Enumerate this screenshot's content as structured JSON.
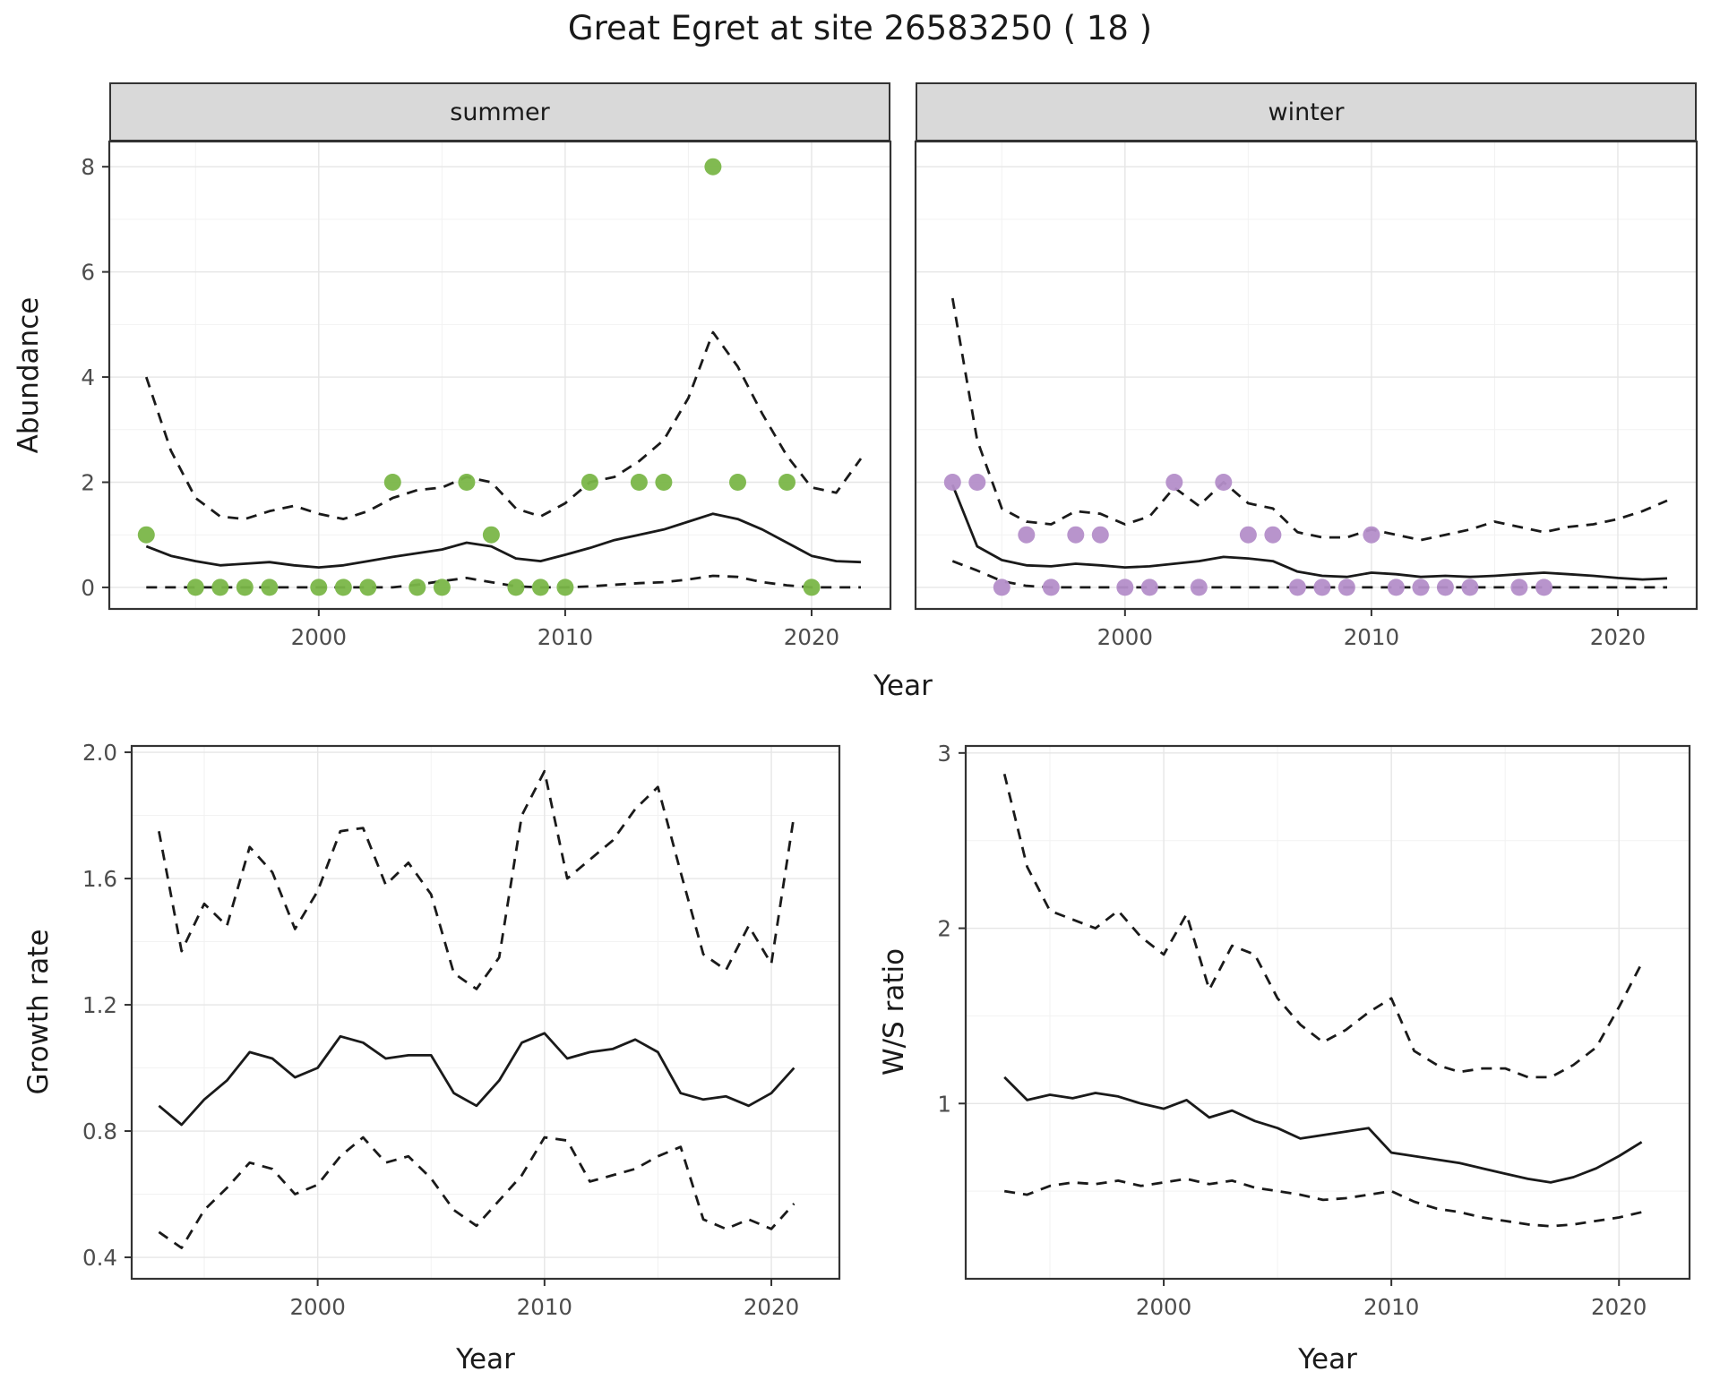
{
  "title": "Great Egret at site 26583250 ( 18 )",
  "labels": {
    "year": "Year",
    "abundance": "Abundance",
    "growth_rate": "Growth rate",
    "ws_ratio": "W/S ratio"
  },
  "colors": {
    "summer_points": "#7ab648",
    "winter_points": "#b48ec9",
    "line": "#1a1a1a",
    "strip_bg": "#d9d9d9",
    "panel_border": "#333333",
    "grid_major": "#e6e6e6",
    "grid_minor": "#f2f2f2",
    "tick_text": "#4d4d4d"
  },
  "chart_data": [
    {
      "id": "abundance-summer",
      "type": "line",
      "facet_label": "summer",
      "xlabel": "Year",
      "ylabel": "Abundance",
      "xlim": [
        1991.5,
        2023.2
      ],
      "ylim": [
        -0.41,
        8.48
      ],
      "xticks": [
        2000,
        2010,
        2020
      ],
      "xtick_labels": [
        "2000",
        "2010",
        "2020"
      ],
      "yticks": [
        0,
        2,
        4,
        6,
        8
      ],
      "ytick_labels": [
        "0",
        "2",
        "4",
        "6",
        "8"
      ],
      "grid": true,
      "x": [
        1993,
        1994,
        1995,
        1996,
        1997,
        1998,
        1999,
        2000,
        2001,
        2002,
        2003,
        2004,
        2005,
        2006,
        2007,
        2008,
        2009,
        2010,
        2011,
        2012,
        2013,
        2014,
        2015,
        2016,
        2017,
        2018,
        2019,
        2020,
        2021,
        2022
      ],
      "series": [
        {
          "name": "median",
          "style": "solid",
          "values": [
            0.78,
            0.6,
            0.5,
            0.42,
            0.45,
            0.48,
            0.42,
            0.38,
            0.42,
            0.5,
            0.58,
            0.65,
            0.72,
            0.85,
            0.78,
            0.55,
            0.5,
            0.62,
            0.75,
            0.9,
            1.0,
            1.1,
            1.25,
            1.4,
            1.3,
            1.1,
            0.85,
            0.6,
            0.5,
            0.48
          ]
        },
        {
          "name": "upper-ci",
          "style": "dashed",
          "values": [
            4.0,
            2.6,
            1.7,
            1.35,
            1.3,
            1.45,
            1.55,
            1.4,
            1.3,
            1.45,
            1.7,
            1.85,
            1.9,
            2.1,
            2.0,
            1.5,
            1.35,
            1.6,
            2.0,
            2.1,
            2.4,
            2.8,
            3.6,
            4.85,
            4.2,
            3.3,
            2.5,
            1.9,
            1.8,
            2.45
          ]
        },
        {
          "name": "lower-ci",
          "style": "dashed",
          "values": [
            0,
            0,
            0,
            0,
            0,
            0,
            0,
            0,
            0,
            0,
            0,
            0.05,
            0.12,
            0.18,
            0.1,
            0.02,
            0,
            0,
            0.02,
            0.05,
            0.08,
            0.1,
            0.15,
            0.22,
            0.2,
            0.1,
            0.04,
            0,
            0,
            0
          ]
        }
      ],
      "points": {
        "name": "observed-counts-summer",
        "color_key": "summer_points",
        "x": [
          1993,
          1995,
          1996,
          1997,
          1998,
          2000,
          2001,
          2002,
          2003,
          2004,
          2005,
          2006,
          2007,
          2008,
          2009,
          2010,
          2011,
          2013,
          2014,
          2016,
          2017,
          2019,
          2020
        ],
        "y": [
          1,
          0,
          0,
          0,
          0,
          0,
          0,
          0,
          2,
          0,
          0,
          2,
          1,
          0,
          0,
          0,
          2,
          2,
          2,
          8,
          2,
          2,
          0
        ]
      }
    },
    {
      "id": "abundance-winter",
      "type": "line",
      "facet_label": "winter",
      "xlabel": "Year",
      "ylabel": "Abundance",
      "xlim": [
        1991.5,
        2023.2
      ],
      "ylim": [
        -0.41,
        8.48
      ],
      "xticks": [
        2000,
        2010,
        2020
      ],
      "xtick_labels": [
        "2000",
        "2010",
        "2020"
      ],
      "yticks": [
        0,
        2,
        4,
        6,
        8
      ],
      "ytick_labels": [
        "0",
        "2",
        "4",
        "6",
        "8"
      ],
      "grid": true,
      "x": [
        1993,
        1994,
        1995,
        1996,
        1997,
        1998,
        1999,
        2000,
        2001,
        2002,
        2003,
        2004,
        2005,
        2006,
        2007,
        2008,
        2009,
        2010,
        2011,
        2012,
        2013,
        2014,
        2015,
        2016,
        2017,
        2018,
        2019,
        2020,
        2021,
        2022
      ],
      "series": [
        {
          "name": "median",
          "style": "solid",
          "values": [
            1.95,
            0.78,
            0.52,
            0.42,
            0.4,
            0.45,
            0.42,
            0.38,
            0.4,
            0.45,
            0.5,
            0.58,
            0.55,
            0.5,
            0.3,
            0.22,
            0.2,
            0.28,
            0.25,
            0.2,
            0.22,
            0.2,
            0.22,
            0.25,
            0.28,
            0.25,
            0.22,
            0.18,
            0.15,
            0.17
          ]
        },
        {
          "name": "upper-ci",
          "style": "dashed",
          "values": [
            5.5,
            2.8,
            1.5,
            1.25,
            1.2,
            1.45,
            1.4,
            1.2,
            1.35,
            1.9,
            1.55,
            2.0,
            1.6,
            1.5,
            1.05,
            0.95,
            0.95,
            1.1,
            1.0,
            0.9,
            1.0,
            1.1,
            1.25,
            1.15,
            1.05,
            1.15,
            1.2,
            1.3,
            1.45,
            1.65
          ]
        },
        {
          "name": "lower-ci",
          "style": "dashed",
          "values": [
            0.5,
            0.32,
            0.12,
            0.03,
            0,
            0,
            0,
            0,
            0,
            0,
            0,
            0,
            0,
            0,
            0,
            0,
            0,
            0,
            0,
            0,
            0,
            0,
            0,
            0,
            0,
            0,
            0,
            0,
            0,
            0
          ]
        }
      ],
      "points": {
        "name": "observed-counts-winter",
        "color_key": "winter_points",
        "x": [
          1993,
          1994,
          1995,
          1996,
          1997,
          1998,
          1999,
          2000,
          2001,
          2002,
          2003,
          2004,
          2005,
          2006,
          2007,
          2008,
          2009,
          2010,
          2011,
          2012,
          2013,
          2014,
          2016,
          2017
        ],
        "y": [
          2,
          2,
          0,
          1,
          0,
          1,
          1,
          0,
          0,
          2,
          0,
          2,
          1,
          1,
          0,
          0,
          0,
          1,
          0,
          0,
          0,
          0,
          0,
          0
        ]
      }
    },
    {
      "id": "growth-rate",
      "type": "line",
      "facet_label": "",
      "xlabel": "Year",
      "ylabel": "Growth rate",
      "xlim": [
        1991.8,
        2023.0
      ],
      "ylim": [
        0.332,
        2.02
      ],
      "xticks": [
        2000,
        2010,
        2020
      ],
      "xtick_labels": [
        "2000",
        "2010",
        "2020"
      ],
      "yticks": [
        0.4,
        0.8,
        1.2,
        1.6,
        2.0
      ],
      "ytick_labels": [
        "0.4",
        "0.8",
        "1.2",
        "1.6",
        "2.0"
      ],
      "grid": true,
      "x": [
        1993,
        1994,
        1995,
        1996,
        1997,
        1998,
        1999,
        2000,
        2001,
        2002,
        2003,
        2004,
        2005,
        2006,
        2007,
        2008,
        2009,
        2010,
        2011,
        2012,
        2013,
        2014,
        2015,
        2016,
        2017,
        2018,
        2019,
        2020,
        2021
      ],
      "series": [
        {
          "name": "median",
          "style": "solid",
          "values": [
            0.88,
            0.82,
            0.9,
            0.96,
            1.05,
            1.03,
            0.97,
            1.0,
            1.1,
            1.08,
            1.03,
            1.04,
            1.04,
            0.92,
            0.88,
            0.96,
            1.08,
            1.11,
            1.03,
            1.05,
            1.06,
            1.09,
            1.05,
            0.92,
            0.9,
            0.91,
            0.88,
            0.92,
            1.0
          ]
        },
        {
          "name": "upper-ci",
          "style": "dashed",
          "values": [
            1.75,
            1.37,
            1.52,
            1.45,
            1.7,
            1.62,
            1.44,
            1.56,
            1.75,
            1.76,
            1.58,
            1.65,
            1.55,
            1.3,
            1.25,
            1.35,
            1.8,
            1.94,
            1.6,
            1.66,
            1.72,
            1.82,
            1.89,
            1.62,
            1.36,
            1.31,
            1.45,
            1.33,
            1.8
          ]
        },
        {
          "name": "lower-ci",
          "style": "dashed",
          "values": [
            0.48,
            0.43,
            0.55,
            0.62,
            0.7,
            0.68,
            0.6,
            0.63,
            0.72,
            0.78,
            0.7,
            0.72,
            0.65,
            0.55,
            0.5,
            0.58,
            0.66,
            0.78,
            0.77,
            0.64,
            0.66,
            0.68,
            0.72,
            0.75,
            0.52,
            0.49,
            0.52,
            0.49,
            0.57
          ]
        }
      ],
      "points": null
    },
    {
      "id": "ws-ratio",
      "type": "line",
      "facet_label": "",
      "xlabel": "Year",
      "ylabel": "W/S ratio",
      "xlim": [
        1991.3,
        2023.1
      ],
      "ylim": [
        0.0,
        3.04
      ],
      "xticks": [
        2000,
        2010,
        2020
      ],
      "xtick_labels": [
        "2000",
        "2010",
        "2020"
      ],
      "yticks": [
        1,
        2,
        3
      ],
      "ytick_labels": [
        "1",
        "2",
        "3"
      ],
      "grid": true,
      "x": [
        1993,
        1994,
        1995,
        1996,
        1997,
        1998,
        1999,
        2000,
        2001,
        2002,
        2003,
        2004,
        2005,
        2006,
        2007,
        2008,
        2009,
        2010,
        2011,
        2012,
        2013,
        2014,
        2015,
        2016,
        2017,
        2018,
        2019,
        2020,
        2021
      ],
      "series": [
        {
          "name": "median",
          "style": "solid",
          "values": [
            1.15,
            1.02,
            1.05,
            1.03,
            1.06,
            1.04,
            1.0,
            0.97,
            1.02,
            0.92,
            0.96,
            0.9,
            0.86,
            0.8,
            0.82,
            0.84,
            0.86,
            0.72,
            0.7,
            0.68,
            0.66,
            0.63,
            0.6,
            0.57,
            0.55,
            0.58,
            0.63,
            0.7,
            0.78
          ]
        },
        {
          "name": "upper-ci",
          "style": "dashed",
          "values": [
            2.88,
            2.35,
            2.1,
            2.05,
            2.0,
            2.1,
            1.95,
            1.85,
            2.08,
            1.65,
            1.9,
            1.85,
            1.6,
            1.45,
            1.35,
            1.42,
            1.52,
            1.6,
            1.3,
            1.22,
            1.18,
            1.2,
            1.2,
            1.15,
            1.15,
            1.22,
            1.32,
            1.55,
            1.8
          ]
        },
        {
          "name": "lower-ci",
          "style": "dashed",
          "values": [
            0.5,
            0.48,
            0.53,
            0.55,
            0.54,
            0.56,
            0.53,
            0.55,
            0.57,
            0.54,
            0.56,
            0.52,
            0.5,
            0.48,
            0.45,
            0.46,
            0.48,
            0.5,
            0.44,
            0.4,
            0.38,
            0.35,
            0.33,
            0.31,
            0.3,
            0.31,
            0.33,
            0.35,
            0.38
          ]
        }
      ],
      "points": null
    }
  ]
}
